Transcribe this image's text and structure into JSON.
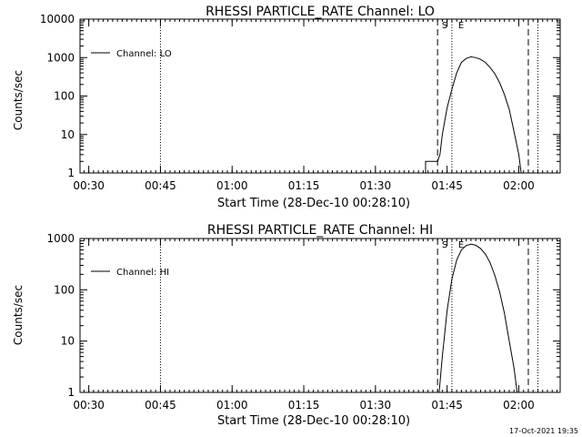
{
  "footer": {
    "timestamp": "17-Oct-2021 19:35"
  },
  "chart_data": [
    {
      "type": "line",
      "title": "RHESSI PARTICLE_RATE Channel: LO",
      "xlabel": "Start Time (28-Dec-10 00:28:10)",
      "ylabel": "Counts/sec",
      "y_scale": "log",
      "xlim": [
        "00:28:10",
        "02:08:40"
      ],
      "ylim": [
        1,
        10000
      ],
      "x_ticks": [
        "00:30",
        "00:45",
        "01:00",
        "01:15",
        "01:30",
        "01:45",
        "02:00"
      ],
      "y_ticks": [
        "1",
        "10",
        "100",
        "1000",
        "10000"
      ],
      "legend": {
        "position": "top-left",
        "label": "Channel: LO"
      },
      "markers": {
        "s": "S",
        "e": "E"
      },
      "vlines": [
        {
          "x": "00:45:00",
          "style": "dotted"
        },
        {
          "x": "01:43:00",
          "style": "dashed"
        },
        {
          "x": "01:46:00",
          "style": "dotted"
        },
        {
          "x": "02:02:00",
          "style": "dashed"
        },
        {
          "x": "02:04:00",
          "style": "dotted"
        }
      ],
      "series": [
        {
          "name": "Channel: LO",
          "points": [
            [
              "01:40:30",
              1
            ],
            [
              "01:40:30",
              2
            ],
            [
              "01:43:00",
              2
            ],
            [
              "01:43:30",
              3
            ],
            [
              "01:44:00",
              10
            ],
            [
              "01:45:00",
              50
            ],
            [
              "01:46:00",
              150
            ],
            [
              "01:47:00",
              400
            ],
            [
              "01:48:00",
              750
            ],
            [
              "01:49:00",
              950
            ],
            [
              "01:50:00",
              1050
            ],
            [
              "01:51:00",
              1000
            ],
            [
              "01:52:00",
              900
            ],
            [
              "01:53:00",
              750
            ],
            [
              "01:54:00",
              550
            ],
            [
              "01:55:00",
              380
            ],
            [
              "01:56:00",
              220
            ],
            [
              "01:57:00",
              110
            ],
            [
              "01:58:00",
              45
            ],
            [
              "01:59:00",
              12
            ],
            [
              "02:00:00",
              3
            ],
            [
              "02:00:30",
              1
            ]
          ]
        }
      ]
    },
    {
      "type": "line",
      "title": "RHESSI PARTICLE_RATE Channel: HI",
      "xlabel": "Start Time (28-Dec-10 00:28:10)",
      "ylabel": "Counts/sec",
      "y_scale": "log",
      "xlim": [
        "00:28:10",
        "02:08:40"
      ],
      "ylim": [
        1,
        1000
      ],
      "x_ticks": [
        "00:30",
        "00:45",
        "01:00",
        "01:15",
        "01:30",
        "01:45",
        "02:00"
      ],
      "y_ticks": [
        "1",
        "10",
        "100",
        "1000"
      ],
      "legend": {
        "position": "top-left",
        "label": "Channel: HI"
      },
      "markers": {
        "s": "S",
        "e": "E"
      },
      "vlines": [
        {
          "x": "00:45:00",
          "style": "dotted"
        },
        {
          "x": "01:43:00",
          "style": "dashed"
        },
        {
          "x": "01:46:00",
          "style": "dotted"
        },
        {
          "x": "02:02:00",
          "style": "dashed"
        },
        {
          "x": "02:04:00",
          "style": "dotted"
        }
      ],
      "series": [
        {
          "name": "Channel: HI",
          "points": [
            [
              "01:43:20",
              1
            ],
            [
              "01:44:00",
              5
            ],
            [
              "01:45:00",
              40
            ],
            [
              "01:46:00",
              160
            ],
            [
              "01:47:00",
              380
            ],
            [
              "01:48:00",
              600
            ],
            [
              "01:49:00",
              730
            ],
            [
              "01:50:00",
              780
            ],
            [
              "01:51:00",
              740
            ],
            [
              "01:52:00",
              640
            ],
            [
              "01:53:00",
              500
            ],
            [
              "01:54:00",
              340
            ],
            [
              "01:55:00",
              190
            ],
            [
              "01:56:00",
              90
            ],
            [
              "01:57:00",
              35
            ],
            [
              "01:58:00",
              10
            ],
            [
              "01:59:00",
              3
            ],
            [
              "01:59:40",
              1
            ]
          ]
        }
      ]
    }
  ]
}
